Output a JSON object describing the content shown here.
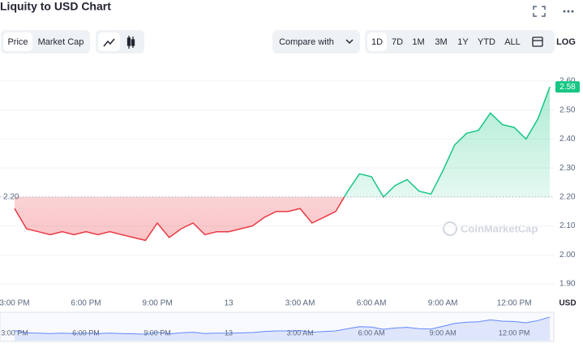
{
  "header": {
    "title": "Liquity to USD Chart"
  },
  "controls": {
    "tabs": [
      "Price",
      "Market Cap"
    ],
    "compare": "Compare with",
    "ranges": [
      "1D",
      "7D",
      "1M",
      "3M",
      "1Y",
      "YTD",
      "ALL"
    ],
    "log": "LOG",
    "currency": "USD",
    "watermark": "CoinMarketCap"
  },
  "chart_data": {
    "type": "line",
    "categories": [
      "3:00 PM",
      null,
      null,
      null,
      null,
      null,
      "6:00 PM",
      null,
      null,
      null,
      null,
      null,
      "9:00 PM",
      null,
      null,
      null,
      null,
      null,
      "13",
      null,
      null,
      null,
      null,
      null,
      "3:00 AM",
      null,
      null,
      null,
      null,
      null,
      "6:00 AM",
      null,
      null,
      null,
      null,
      null,
      "9:00 AM",
      null,
      null,
      null,
      null,
      null,
      "12:00 PM",
      null,
      null,
      null
    ],
    "series": [
      {
        "name": "Liquity",
        "values": [
          2.16,
          2.09,
          2.08,
          2.07,
          2.08,
          2.07,
          2.08,
          2.07,
          2.08,
          2.07,
          2.06,
          2.05,
          2.11,
          2.06,
          2.09,
          2.11,
          2.07,
          2.08,
          2.08,
          2.09,
          2.1,
          2.13,
          2.15,
          2.15,
          2.16,
          2.11,
          2.13,
          2.15,
          2.22,
          2.28,
          2.27,
          2.2,
          2.24,
          2.26,
          2.22,
          2.21,
          2.29,
          2.38,
          2.42,
          2.43,
          2.49,
          2.45,
          2.44,
          2.4,
          2.47,
          2.58
        ]
      }
    ],
    "price_tag": "2.58",
    "baseline": {
      "value": 2.2,
      "label": "2.20"
    },
    "up_color": "#16c784",
    "down_color": "#ea3943",
    "ylim": [
      1.9,
      2.6
    ],
    "yticks": [
      {
        "value": 1.9,
        "label": "1.90"
      },
      {
        "value": 2.0,
        "label": "2.00"
      },
      {
        "value": 2.1,
        "label": "2.10"
      },
      {
        "value": 2.2,
        "label": "2.20"
      },
      {
        "value": 2.3,
        "label": "2.30"
      },
      {
        "value": 2.4,
        "label": "2.40"
      },
      {
        "value": 2.5,
        "label": "2.50"
      },
      {
        "value": 2.6,
        "label": "2.60"
      }
    ],
    "grid": true
  }
}
